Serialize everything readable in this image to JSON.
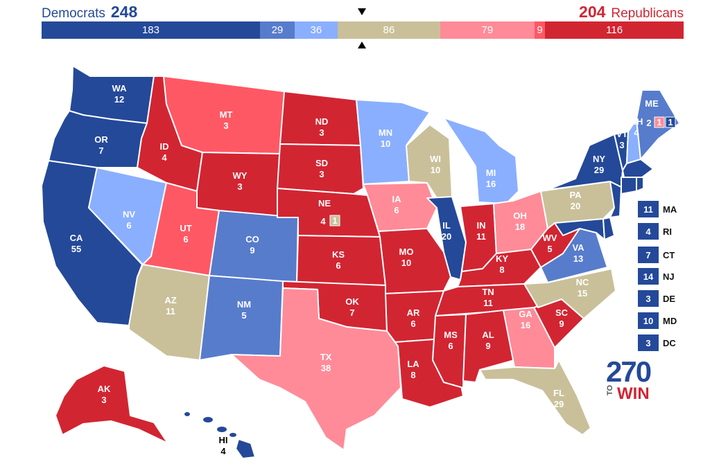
{
  "header": {
    "dem_label": "Democrats",
    "dem_total": "248",
    "rep_total": "204",
    "rep_label": "Republicans"
  },
  "bar": [
    {
      "label": "183",
      "value": 183,
      "color": "#244999"
    },
    {
      "label": "29",
      "value": 29,
      "color": "#577ccc"
    },
    {
      "label": "36",
      "value": 36,
      "color": "#8aafff"
    },
    {
      "label": "86",
      "value": 86,
      "color": "#c9c09a"
    },
    {
      "label": "79",
      "value": 79,
      "color": "#ff8b98"
    },
    {
      "label": "9",
      "value": 9,
      "color": "#ff5865"
    },
    {
      "label": "116",
      "value": 116,
      "color": "#d22532"
    }
  ],
  "colors": {
    "safe_dem": "#244999",
    "likely_dem": "#577ccc",
    "lean_dem": "#8aafff",
    "tossup": "#c9c09a",
    "lean_rep": "#ff8b98",
    "likely_rep": "#ff5865",
    "safe_rep": "#d22532"
  },
  "states": {
    "WA": {
      "abbr": "WA",
      "ev": "12"
    },
    "OR": {
      "abbr": "OR",
      "ev": "7"
    },
    "CA": {
      "abbr": "CA",
      "ev": "55"
    },
    "NV": {
      "abbr": "NV",
      "ev": "6"
    },
    "ID": {
      "abbr": "ID",
      "ev": "4"
    },
    "MT": {
      "abbr": "MT",
      "ev": "3"
    },
    "WY": {
      "abbr": "WY",
      "ev": "3"
    },
    "UT": {
      "abbr": "UT",
      "ev": "6"
    },
    "AZ": {
      "abbr": "AZ",
      "ev": "11"
    },
    "CO": {
      "abbr": "CO",
      "ev": "9"
    },
    "NM": {
      "abbr": "NM",
      "ev": "5"
    },
    "ND": {
      "abbr": "ND",
      "ev": "3"
    },
    "SD": {
      "abbr": "SD",
      "ev": "3"
    },
    "NE": {
      "abbr": "NE",
      "ev": "4",
      "extra": "1"
    },
    "KS": {
      "abbr": "KS",
      "ev": "6"
    },
    "OK": {
      "abbr": "OK",
      "ev": "7"
    },
    "TX": {
      "abbr": "TX",
      "ev": "38"
    },
    "MN": {
      "abbr": "MN",
      "ev": "10"
    },
    "IA": {
      "abbr": "IA",
      "ev": "6"
    },
    "MO": {
      "abbr": "MO",
      "ev": "10"
    },
    "AR": {
      "abbr": "AR",
      "ev": "6"
    },
    "LA": {
      "abbr": "LA",
      "ev": "8"
    },
    "WI": {
      "abbr": "WI",
      "ev": "10"
    },
    "IL": {
      "abbr": "IL",
      "ev": "20"
    },
    "MI": {
      "abbr": "MI",
      "ev": "16"
    },
    "IN": {
      "abbr": "IN",
      "ev": "11"
    },
    "OH": {
      "abbr": "OH",
      "ev": "18"
    },
    "KY": {
      "abbr": "KY",
      "ev": "8"
    },
    "TN": {
      "abbr": "TN",
      "ev": "11"
    },
    "MS": {
      "abbr": "MS",
      "ev": "6"
    },
    "AL": {
      "abbr": "AL",
      "ev": "9"
    },
    "GA": {
      "abbr": "GA",
      "ev": "16"
    },
    "FL": {
      "abbr": "FL",
      "ev": "29"
    },
    "SC": {
      "abbr": "SC",
      "ev": "9"
    },
    "NC": {
      "abbr": "NC",
      "ev": "15"
    },
    "VA": {
      "abbr": "VA",
      "ev": "13"
    },
    "WV": {
      "abbr": "WV",
      "ev": "5"
    },
    "PA": {
      "abbr": "PA",
      "ev": "20"
    },
    "NY": {
      "abbr": "NY",
      "ev": "29"
    },
    "VT": {
      "abbr": "VT",
      "ev": "3"
    },
    "NH": {
      "abbr": "NH",
      "ev": "4"
    },
    "ME": {
      "abbr": "ME",
      "ev": "2",
      "extra1": "1",
      "extra2": "1"
    },
    "AK": {
      "abbr": "AK",
      "ev": "3"
    },
    "HI": {
      "abbr": "HI",
      "ev": "4"
    }
  },
  "legend": [
    {
      "ev": "11",
      "name": "MA"
    },
    {
      "ev": "4",
      "name": "RI"
    },
    {
      "ev": "7",
      "name": "CT"
    },
    {
      "ev": "14",
      "name": "NJ"
    },
    {
      "ev": "3",
      "name": "DE"
    },
    {
      "ev": "10",
      "name": "MD"
    },
    {
      "ev": "3",
      "name": "DC"
    }
  ],
  "logo": {
    "number": "270",
    "to": "TO",
    "win": "WIN"
  }
}
